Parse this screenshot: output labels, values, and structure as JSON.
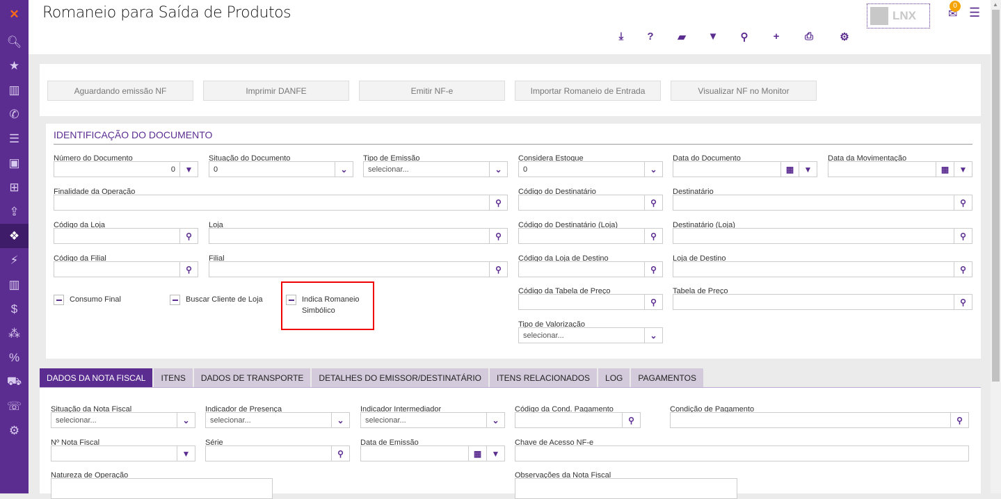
{
  "app": {
    "title": "Romaneio para Saída de Produtos",
    "logo_text": "LNX",
    "notification_count": "0"
  },
  "sidebar": {
    "items": [
      "logo",
      "search-icon",
      "star-icon",
      "bar-chart-icon",
      "phone-icon",
      "list-icon",
      "contacts-icon",
      "basket-icon",
      "upload-icon",
      "dropbox-icon",
      "plug-icon",
      "bar-chart-icon",
      "dollar-icon",
      "cubes-icon",
      "percent-icon",
      "cart-icon",
      "phone-square-icon",
      "cogs-icon"
    ],
    "active_index": 9
  },
  "toolbar": [
    "download-icon",
    "help-icon",
    "eraser-icon",
    "filter-icon",
    "search-icon",
    "add-icon",
    "print-icon",
    "settings-icon"
  ],
  "actions": [
    "Aguardando emissão NF",
    "Imprimir DANFE",
    "Emitir NF-e",
    "Importar Romaneio de Entrada",
    "Visualizar NF no Monitor"
  ],
  "section": {
    "title": "Identificação do Documento"
  },
  "fields": [
    {
      "label": "Número do Documento",
      "value": "0",
      "type": "filter"
    },
    {
      "label": "Situação do Documento",
      "value": "0",
      "type": "select"
    },
    {
      "label": "Tipo de Emissão",
      "placeholder": "selecionar...",
      "type": "select"
    },
    {
      "label": "Considera Estoque",
      "value": "0",
      "type": "select"
    },
    {
      "label": "Data do Documento",
      "value": "",
      "type": "date-filter"
    },
    {
      "label": "Data da Movimentação",
      "value": "",
      "type": "date-filter"
    },
    {
      "label": "Finalidade da Operação",
      "value": "",
      "type": "search"
    },
    {
      "label": "Código do Destinatário",
      "value": "",
      "type": "search"
    },
    {
      "label": "Destinatário",
      "value": "",
      "type": "search"
    },
    {
      "label": "Código da Loja",
      "value": "",
      "type": "search"
    },
    {
      "label": "Loja",
      "value": "",
      "type": "search"
    },
    {
      "label": "Código do Destinatário (Loja)",
      "value": "",
      "type": "search"
    },
    {
      "label": "Destinatário (Loja)",
      "value": "",
      "type": "search"
    },
    {
      "label": "Código da Filial",
      "value": "",
      "type": "search"
    },
    {
      "label": "Filial",
      "value": "",
      "type": "search"
    },
    {
      "label": "Código da Loja de Destino",
      "value": "",
      "type": "search"
    },
    {
      "label": "Loja de Destino",
      "value": "",
      "type": "search"
    },
    {
      "label": "Código da Tabela de Preço",
      "value": "",
      "type": "search"
    },
    {
      "label": "Tabela de Preço",
      "value": "",
      "type": "search"
    },
    {
      "label": "Tipo de Valorização",
      "placeholder": "selecionar...",
      "type": "select"
    }
  ],
  "checkboxes": [
    {
      "label": "Consumo Final",
      "state": "indeterminate"
    },
    {
      "label": "Buscar Cliente de Loja",
      "state": "indeterminate"
    },
    {
      "label": "Indica Romaneio Simbólico",
      "state": "indeterminate",
      "highlighted": true
    }
  ],
  "tabs": {
    "items": [
      "Dados da Nota Fiscal",
      "Itens",
      "Dados de Transporte",
      "Detalhes do Emissor/Destinatário",
      "Itens Relacionados",
      "Log",
      "Pagamentos"
    ],
    "active_index": 0
  },
  "nf_fields": [
    {
      "label": "Situação da Nota Fiscal",
      "placeholder": "selecionar...",
      "type": "select"
    },
    {
      "label": "Indicador de Presença",
      "placeholder": "selecionar...",
      "type": "select"
    },
    {
      "label": "Indicador Intermediador",
      "placeholder": "selecionar...",
      "type": "select"
    },
    {
      "label": "Código da Cond. Pagamento",
      "value": "",
      "type": "search"
    },
    {
      "label": "Condição de Pagamento",
      "value": "",
      "type": "search"
    },
    {
      "label": "Nº Nota Fiscal",
      "value": "",
      "type": "filter"
    },
    {
      "label": "Série",
      "value": "",
      "type": "search"
    },
    {
      "label": "Data de Emissão",
      "value": "",
      "type": "date-filter"
    },
    {
      "label": "Chave de Acesso NF-e",
      "value": "",
      "type": "text"
    },
    {
      "label": "Natureza de Operação",
      "value": "",
      "type": "text"
    },
    {
      "label": "Observações da Nota Fiscal",
      "value": "",
      "type": "text"
    }
  ],
  "colors": {
    "brand": "#5c2d91",
    "highlight": "#e00000",
    "badge": "#f5a300"
  }
}
